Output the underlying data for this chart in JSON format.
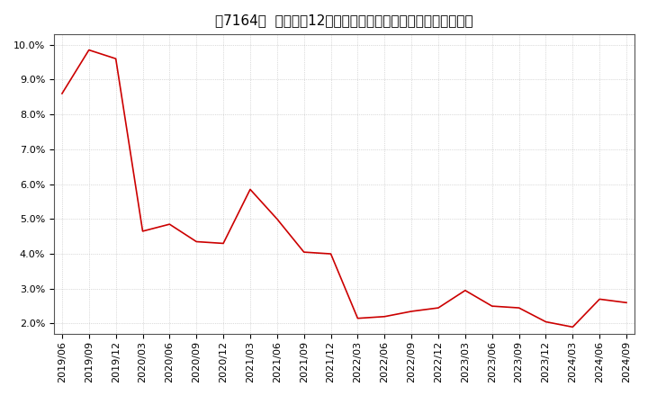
{
  "title_proper": "［7164］  売上高の12か月移動合計の対前年同期増減率の推移",
  "x_labels": [
    "2019/06",
    "2019/09",
    "2019/12",
    "2020/03",
    "2020/06",
    "2020/09",
    "2020/12",
    "2021/03",
    "2021/06",
    "2021/09",
    "2021/12",
    "2022/03",
    "2022/06",
    "2022/09",
    "2022/12",
    "2023/03",
    "2023/06",
    "2023/09",
    "2023/12",
    "2024/03",
    "2024/06",
    "2024/09"
  ],
  "y_values": [
    8.6,
    9.85,
    9.6,
    4.65,
    4.85,
    4.35,
    4.3,
    5.85,
    5.0,
    4.05,
    4.0,
    2.15,
    2.2,
    2.35,
    2.45,
    2.95,
    2.5,
    2.45,
    2.05,
    1.9,
    2.7,
    2.6
  ],
  "line_color": "#cc0000",
  "background_color": "#ffffff",
  "plot_bg_color": "#ffffff",
  "grid_color": "#aaaaaa",
  "ylim": [
    1.7,
    10.3
  ],
  "yticks": [
    2.0,
    3.0,
    4.0,
    5.0,
    6.0,
    7.0,
    8.0,
    9.0,
    10.0
  ],
  "title_fontsize": 11,
  "tick_fontsize": 8
}
